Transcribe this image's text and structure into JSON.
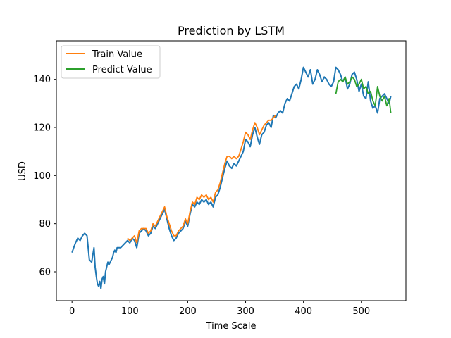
{
  "chart_data": {
    "type": "line",
    "title": "Prediction by LSTM",
    "xlabel": "Time Scale",
    "ylabel": "USD",
    "xlim": [
      -27,
      577
    ],
    "ylim": [
      48,
      156
    ],
    "xticks": [
      0,
      100,
      200,
      300,
      400,
      500
    ],
    "yticks": [
      60,
      80,
      100,
      120,
      140
    ],
    "grid": false,
    "legend_position": "top-left",
    "colors": {
      "actual": "#1f77b4",
      "train": "#ff7f0e",
      "predict": "#2ca02c"
    },
    "series": [
      {
        "key": "actual",
        "x": [
          0,
          3,
          6,
          10,
          14,
          18,
          22,
          26,
          30,
          34,
          38,
          40,
          42,
          44,
          46,
          48,
          50,
          52,
          54,
          56,
          58,
          60,
          62,
          64,
          66,
          68,
          70,
          72,
          74,
          76,
          78,
          80,
          84,
          88,
          92,
          96,
          100,
          104,
          108,
          112,
          116,
          120,
          124,
          128,
          132,
          136,
          140,
          144,
          148,
          152,
          156,
          160,
          164,
          168,
          172,
          176,
          180,
          184,
          188,
          192,
          196,
          200,
          204,
          208,
          212,
          216,
          220,
          224,
          228,
          232,
          236,
          240,
          244,
          248,
          252,
          256,
          260,
          264,
          268,
          272,
          276,
          280,
          284,
          288,
          292,
          296,
          300,
          304,
          308,
          312,
          316,
          320,
          324,
          328,
          332,
          336,
          340,
          344,
          348,
          352,
          356,
          360,
          364,
          368,
          372,
          376,
          380,
          384,
          388,
          392,
          396,
          400,
          404,
          408,
          412,
          416,
          420,
          424,
          428,
          432,
          436,
          440,
          444,
          448,
          452,
          456,
          460,
          464,
          468,
          472,
          476,
          480,
          484,
          488,
          492,
          496,
          500,
          504,
          508,
          512,
          516,
          520,
          524,
          528,
          532,
          536,
          540,
          544,
          548,
          551
        ],
        "y": [
          68,
          70,
          72,
          74,
          73,
          75,
          76,
          75,
          65,
          64,
          70,
          62,
          58,
          55,
          54,
          56,
          53,
          57,
          58,
          55,
          60,
          62,
          64,
          63,
          64,
          65,
          66,
          68,
          69,
          68,
          70,
          70,
          70,
          71,
          72,
          73,
          72,
          74,
          73,
          70,
          76,
          77,
          78,
          77,
          75,
          76,
          79,
          78,
          80,
          82,
          84,
          86,
          82,
          78,
          75,
          73,
          74,
          76,
          77,
          78,
          81,
          79,
          84,
          88,
          87,
          89,
          88,
          90,
          89,
          90,
          88,
          89,
          87,
          91,
          92,
          95,
          99,
          103,
          106,
          104,
          103,
          105,
          104,
          106,
          108,
          110,
          115,
          114,
          112,
          117,
          120,
          116,
          113,
          117,
          118,
          121,
          122,
          120,
          125,
          124,
          126,
          127,
          126,
          130,
          132,
          131,
          134,
          137,
          138,
          136,
          140,
          145,
          143,
          141,
          144,
          138,
          140,
          144,
          142,
          139,
          141,
          140,
          138,
          137,
          139,
          145,
          144,
          142,
          139,
          141,
          136,
          138,
          142,
          143,
          140,
          135,
          138,
          133,
          132,
          139,
          131,
          128,
          129,
          126,
          132,
          133,
          134,
          132,
          130,
          133
        ],
        "stroke": 2
      },
      {
        "key": "train",
        "name": "Train Value",
        "x": [
          96,
          100,
          104,
          108,
          112,
          116,
          120,
          124,
          128,
          132,
          136,
          140,
          144,
          148,
          152,
          156,
          160,
          164,
          168,
          172,
          176,
          180,
          184,
          188,
          192,
          196,
          200,
          204,
          208,
          212,
          216,
          220,
          224,
          228,
          232,
          236,
          240,
          244,
          248,
          252,
          256,
          260,
          264,
          268,
          272,
          276,
          280,
          284,
          288,
          292,
          296,
          300,
          304,
          308,
          312,
          316,
          320,
          324,
          328,
          332,
          336,
          340,
          344,
          348,
          352
        ],
        "y": [
          74,
          73,
          74,
          75,
          72,
          77,
          78,
          78,
          78,
          76,
          77,
          80,
          79,
          81,
          83,
          85,
          87,
          83,
          80,
          77,
          75,
          75,
          77,
          78,
          79,
          82,
          80,
          85,
          89,
          88,
          91,
          90,
          92,
          91,
          92,
          90,
          91,
          89,
          93,
          94,
          97,
          101,
          105,
          108,
          108,
          107,
          108,
          107,
          108,
          111,
          114,
          118,
          117,
          115,
          119,
          122,
          120,
          117,
          119,
          121,
          122,
          123,
          123,
          124,
          125
        ],
        "stroke": 1.8
      },
      {
        "key": "predict",
        "name": "Predict Value",
        "x": [
          456,
          460,
          464,
          468,
          472,
          476,
          480,
          484,
          488,
          492,
          496,
          500,
          504,
          508,
          512,
          516,
          520,
          524,
          528,
          532,
          536,
          540,
          544,
          548,
          551
        ],
        "y": [
          134,
          139,
          140,
          139,
          141,
          138,
          139,
          141,
          140,
          137,
          138,
          140,
          136,
          137,
          134,
          135,
          131,
          129,
          137,
          133,
          131,
          133,
          129,
          132,
          126
        ],
        "stroke": 1.8
      }
    ]
  }
}
